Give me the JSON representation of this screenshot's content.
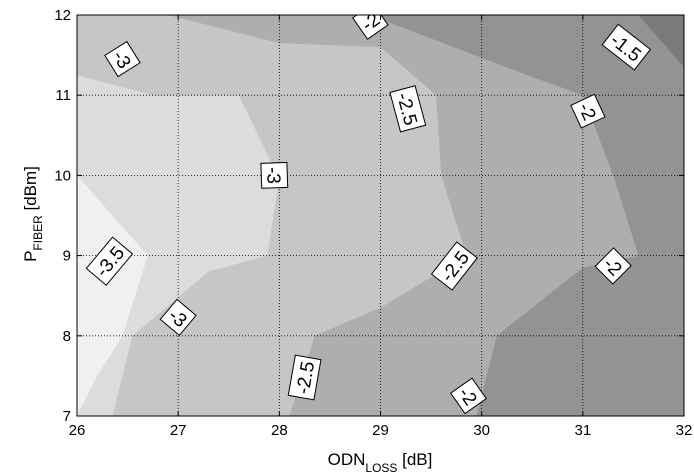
{
  "chart_data": {
    "type": "contour",
    "xlabel": {
      "main": "ODN",
      "sub": "LOSS",
      "unit": " [dB]"
    },
    "ylabel": {
      "main": "P",
      "sub": "FIBER",
      "unit": " [dBm]"
    },
    "xlim": [
      26,
      32
    ],
    "ylim": [
      7,
      12
    ],
    "x_ticks": [
      26,
      27,
      28,
      29,
      30,
      31,
      32
    ],
    "y_ticks": [
      7,
      8,
      9,
      10,
      11,
      12
    ],
    "grid": true,
    "level_fills": {
      "lt_-3.5": "#f0f0f0",
      "-3.5_to_-3": "#dcdcdc",
      "-3_to_-2.5": "#c6c6c6",
      "-2.5_to_-2": "#aeaeae",
      "-2_to_-1.5": "#939393",
      "gt_-1.5": "#7a7a7a"
    },
    "contour_levels": [
      {
        "level": -3.5,
        "points": [
          [
            26,
            10.0
          ],
          [
            26.7,
            9.0
          ],
          [
            26.45,
            8.0
          ],
          [
            26.2,
            7.5
          ]
        ]
      },
      {
        "level": -3.0,
        "points": [
          [
            26.4,
            12.0
          ],
          [
            26.0,
            11.55
          ],
          [
            26.0,
            11.25
          ],
          [
            26.75,
            11.0
          ],
          [
            27.6,
            11.0
          ],
          [
            28.0,
            9.95
          ],
          [
            27.88,
            9.0
          ],
          [
            27.3,
            8.8
          ],
          [
            26.55,
            8.0
          ],
          [
            26.35,
            7.0
          ]
        ]
      },
      {
        "level": -2.5,
        "points": [
          [
            26.9,
            12.0
          ],
          [
            28.0,
            11.65
          ],
          [
            29.0,
            11.6
          ],
          [
            29.55,
            11.0
          ],
          [
            29.6,
            10.0
          ],
          [
            29.85,
            9.0
          ],
          [
            29.0,
            8.35
          ],
          [
            28.35,
            8.0
          ],
          [
            28.1,
            7.0
          ]
        ]
      },
      {
        "level": -2.0,
        "points": [
          [
            28.9,
            12.0
          ],
          [
            29.1,
            11.9
          ],
          [
            30.45,
            11.25
          ],
          [
            31.0,
            11.0
          ],
          [
            31.3,
            10.0
          ],
          [
            31.55,
            9.0
          ],
          [
            31.0,
            8.85
          ],
          [
            30.15,
            8.0
          ],
          [
            29.95,
            7.0
          ]
        ]
      },
      {
        "level": -1.5,
        "points": [
          [
            31.55,
            12.0
          ],
          [
            32.0,
            11.35
          ]
        ]
      }
    ],
    "contour_labels": [
      {
        "text": "-3",
        "x": 26.45,
        "y": 11.45,
        "angle": 58
      },
      {
        "text": "-3",
        "x": 27.95,
        "y": 10.0,
        "angle": 88
      },
      {
        "text": "-3.5",
        "x": 26.32,
        "y": 8.93,
        "angle": -50
      },
      {
        "text": "-3",
        "x": 27.0,
        "y": 8.23,
        "angle": 40
      },
      {
        "text": "-2",
        "x": 28.9,
        "y": 11.92,
        "angle": -35
      },
      {
        "text": "-2.5",
        "x": 29.27,
        "y": 10.83,
        "angle": 75
      },
      {
        "text": "-2.5",
        "x": 29.73,
        "y": 8.87,
        "angle": -52
      },
      {
        "text": "-2.5",
        "x": 28.25,
        "y": 7.48,
        "angle": -80
      },
      {
        "text": "-2",
        "x": 31.05,
        "y": 10.8,
        "angle": 65
      },
      {
        "text": "-2",
        "x": 31.3,
        "y": 8.87,
        "angle": 45
      },
      {
        "text": "-2",
        "x": 29.87,
        "y": 7.25,
        "angle": 55
      },
      {
        "text": "-1.5",
        "x": 31.43,
        "y": 11.6,
        "angle": 38
      }
    ]
  }
}
